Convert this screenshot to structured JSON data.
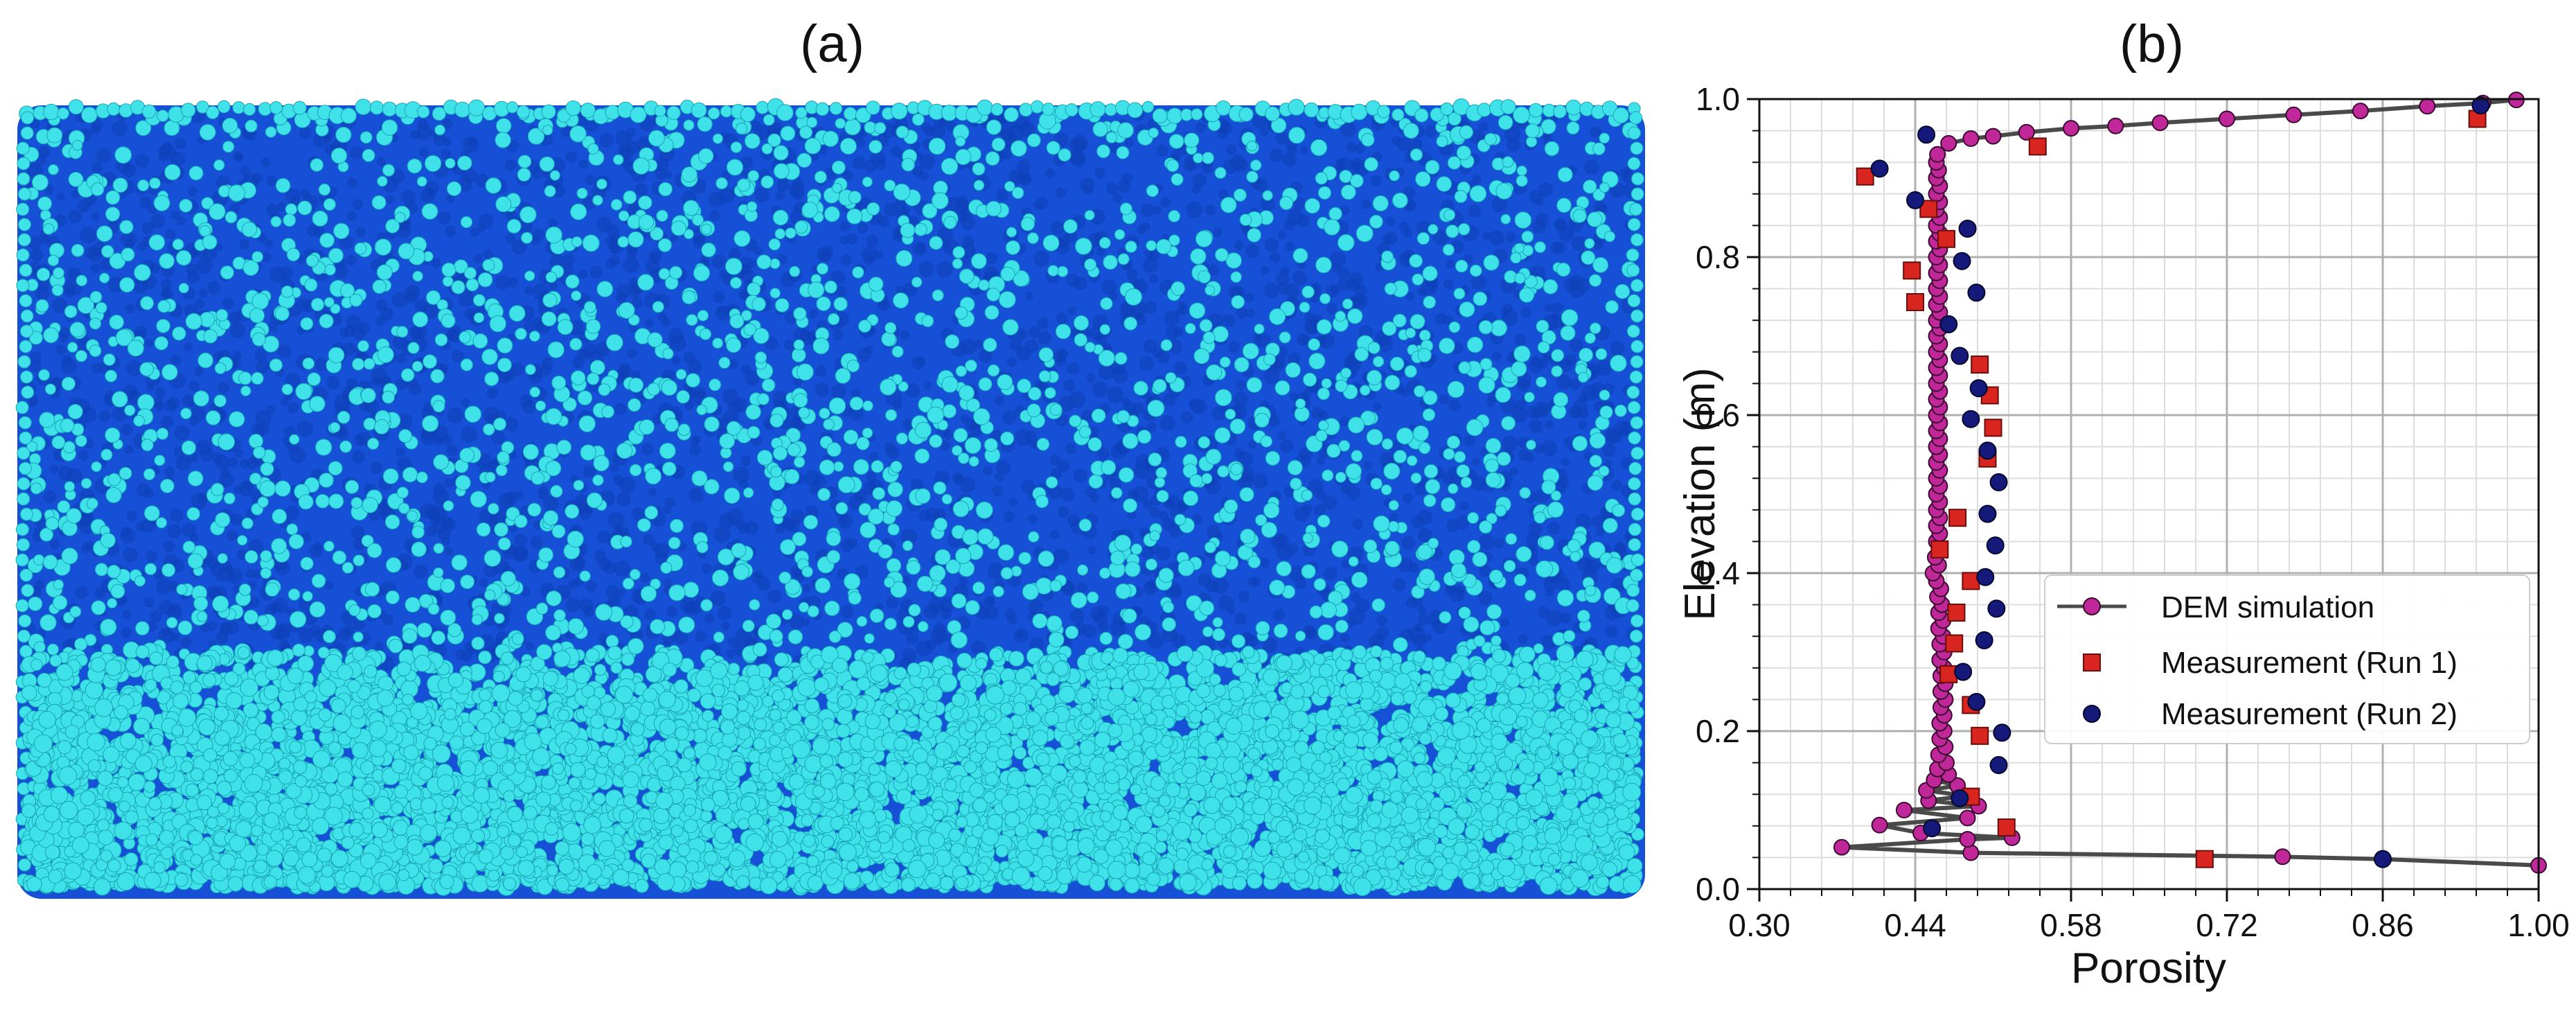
{
  "panels": {
    "a": {
      "label": "(a)"
    },
    "b": {
      "label": "(b)"
    }
  },
  "colors": {
    "bed_dark": "#1650d6",
    "particle_light": "#3fe2e8",
    "dem_line": "#4a4a4a",
    "dem_marker": "#c0289a",
    "run1_marker": "#d8251f",
    "run2_marker": "#14197a",
    "grid_major": "#b0b0b0",
    "grid_minor": "#dddddd"
  },
  "chart_data": {
    "type": "scatter",
    "xlabel": "Porosity",
    "ylabel": "Elevation (m)",
    "xlim": [
      0.3,
      1.0
    ],
    "ylim": [
      0.0,
      1.0
    ],
    "xticks": [
      "0.30",
      "0.44",
      "0.58",
      "0.72",
      "0.86",
      "1.00"
    ],
    "yticks": [
      "0.0",
      "0.2",
      "0.4",
      "0.6",
      "0.8",
      "1.0"
    ],
    "grid": true,
    "legend_position": "center-right",
    "series": [
      {
        "name": "DEM simulation",
        "style": "line-with-circles",
        "points": [
          [
            1.0,
            0.03
          ],
          [
            0.86,
            0.038
          ],
          [
            0.77,
            0.041
          ],
          [
            0.49,
            0.046
          ],
          [
            0.374,
            0.053
          ],
          [
            0.487,
            0.063
          ],
          [
            0.527,
            0.065
          ],
          [
            0.445,
            0.071
          ],
          [
            0.408,
            0.081
          ],
          [
            0.487,
            0.09
          ],
          [
            0.43,
            0.1
          ],
          [
            0.497,
            0.105
          ],
          [
            0.452,
            0.112
          ],
          [
            0.485,
            0.118
          ],
          [
            0.45,
            0.125
          ],
          [
            0.478,
            0.131
          ],
          [
            0.457,
            0.138
          ],
          [
            0.47,
            0.145
          ],
          [
            0.46,
            0.152
          ],
          [
            0.468,
            0.16
          ],
          [
            0.461,
            0.17
          ],
          [
            0.467,
            0.18
          ],
          [
            0.462,
            0.19
          ],
          [
            0.466,
            0.2
          ],
          [
            0.462,
            0.21
          ],
          [
            0.466,
            0.22
          ],
          [
            0.463,
            0.23
          ],
          [
            0.467,
            0.24
          ],
          [
            0.463,
            0.25
          ],
          [
            0.467,
            0.26
          ],
          [
            0.463,
            0.27
          ],
          [
            0.466,
            0.28
          ],
          [
            0.462,
            0.29
          ],
          [
            0.466,
            0.3
          ],
          [
            0.462,
            0.31
          ],
          [
            0.465,
            0.32
          ],
          [
            0.461,
            0.33
          ],
          [
            0.465,
            0.34
          ],
          [
            0.461,
            0.35
          ],
          [
            0.464,
            0.36
          ],
          [
            0.46,
            0.37
          ],
          [
            0.463,
            0.38
          ],
          [
            0.459,
            0.39
          ],
          [
            0.456,
            0.4
          ],
          [
            0.461,
            0.41
          ],
          [
            0.458,
            0.42
          ],
          [
            0.462,
            0.43
          ],
          [
            0.459,
            0.44
          ],
          [
            0.462,
            0.45
          ],
          [
            0.459,
            0.46
          ],
          [
            0.462,
            0.47
          ],
          [
            0.459,
            0.48
          ],
          [
            0.462,
            0.49
          ],
          [
            0.459,
            0.5
          ],
          [
            0.462,
            0.51
          ],
          [
            0.459,
            0.52
          ],
          [
            0.462,
            0.53
          ],
          [
            0.459,
            0.54
          ],
          [
            0.462,
            0.55
          ],
          [
            0.459,
            0.56
          ],
          [
            0.462,
            0.57
          ],
          [
            0.459,
            0.58
          ],
          [
            0.462,
            0.59
          ],
          [
            0.459,
            0.6
          ],
          [
            0.462,
            0.61
          ],
          [
            0.459,
            0.62
          ],
          [
            0.462,
            0.63
          ],
          [
            0.459,
            0.64
          ],
          [
            0.462,
            0.65
          ],
          [
            0.459,
            0.66
          ],
          [
            0.462,
            0.67
          ],
          [
            0.459,
            0.68
          ],
          [
            0.462,
            0.69
          ],
          [
            0.459,
            0.7
          ],
          [
            0.462,
            0.71
          ],
          [
            0.459,
            0.72
          ],
          [
            0.462,
            0.73
          ],
          [
            0.459,
            0.74
          ],
          [
            0.462,
            0.75
          ],
          [
            0.459,
            0.76
          ],
          [
            0.462,
            0.77
          ],
          [
            0.459,
            0.78
          ],
          [
            0.462,
            0.79
          ],
          [
            0.459,
            0.8
          ],
          [
            0.462,
            0.81
          ],
          [
            0.459,
            0.82
          ],
          [
            0.462,
            0.83
          ],
          [
            0.459,
            0.84
          ],
          [
            0.462,
            0.85
          ],
          [
            0.459,
            0.86
          ],
          [
            0.462,
            0.87
          ],
          [
            0.459,
            0.88
          ],
          [
            0.462,
            0.89
          ],
          [
            0.459,
            0.9
          ],
          [
            0.461,
            0.91
          ],
          [
            0.459,
            0.92
          ],
          [
            0.46,
            0.93
          ],
          [
            0.47,
            0.944
          ],
          [
            0.49,
            0.95
          ],
          [
            0.51,
            0.953
          ],
          [
            0.54,
            0.958
          ],
          [
            0.58,
            0.963
          ],
          [
            0.62,
            0.966
          ],
          [
            0.66,
            0.97
          ],
          [
            0.72,
            0.975
          ],
          [
            0.78,
            0.98
          ],
          [
            0.84,
            0.985
          ],
          [
            0.9,
            0.991
          ],
          [
            0.95,
            0.995
          ],
          [
            0.98,
            0.999
          ]
        ]
      },
      {
        "name": "Measurement (Run 1)",
        "style": "square",
        "points": [
          [
            0.395,
            0.902
          ],
          [
            0.452,
            0.861
          ],
          [
            0.468,
            0.823
          ],
          [
            0.437,
            0.783
          ],
          [
            0.44,
            0.743
          ],
          [
            0.498,
            0.664
          ],
          [
            0.507,
            0.625
          ],
          [
            0.51,
            0.584
          ],
          [
            0.505,
            0.545
          ],
          [
            0.478,
            0.47
          ],
          [
            0.462,
            0.43
          ],
          [
            0.49,
            0.39
          ],
          [
            0.477,
            0.35
          ],
          [
            0.475,
            0.311
          ],
          [
            0.47,
            0.272
          ],
          [
            0.49,
            0.233
          ],
          [
            0.498,
            0.194
          ],
          [
            0.49,
            0.117
          ],
          [
            0.522,
            0.078
          ],
          [
            0.7,
            0.038
          ],
          [
            0.55,
            0.94
          ],
          [
            0.945,
            0.975
          ]
        ]
      },
      {
        "name": "Measurement (Run 2)",
        "style": "circle",
        "points": [
          [
            0.45,
            0.955
          ],
          [
            0.408,
            0.912
          ],
          [
            0.44,
            0.872
          ],
          [
            0.487,
            0.836
          ],
          [
            0.482,
            0.795
          ],
          [
            0.495,
            0.755
          ],
          [
            0.47,
            0.715
          ],
          [
            0.48,
            0.675
          ],
          [
            0.497,
            0.634
          ],
          [
            0.49,
            0.595
          ],
          [
            0.505,
            0.555
          ],
          [
            0.515,
            0.515
          ],
          [
            0.505,
            0.475
          ],
          [
            0.512,
            0.435
          ],
          [
            0.503,
            0.395
          ],
          [
            0.513,
            0.355
          ],
          [
            0.502,
            0.315
          ],
          [
            0.483,
            0.275
          ],
          [
            0.495,
            0.237
          ],
          [
            0.518,
            0.198
          ],
          [
            0.515,
            0.157
          ],
          [
            0.48,
            0.115
          ],
          [
            0.455,
            0.077
          ],
          [
            0.86,
            0.038
          ],
          [
            0.948,
            0.992
          ]
        ]
      }
    ]
  }
}
